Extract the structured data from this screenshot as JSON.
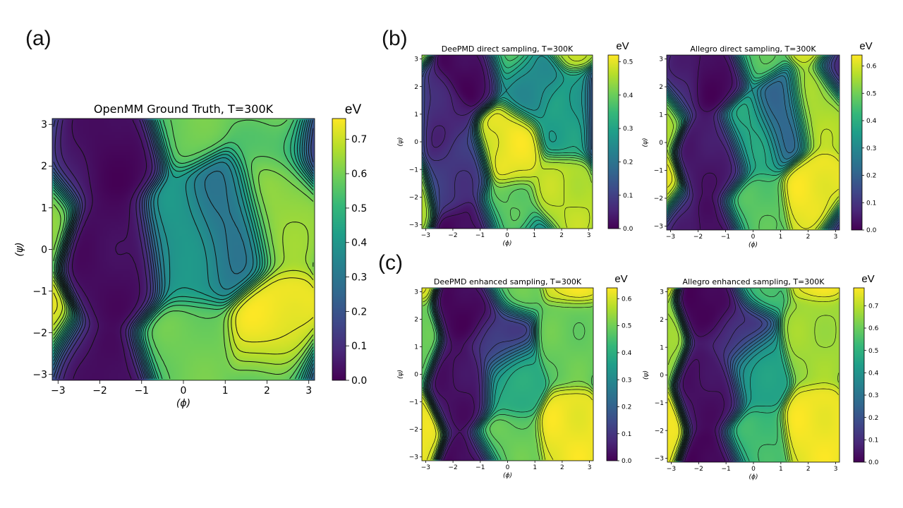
{
  "panel_labels": [
    "(a)",
    "(b)",
    "(c)"
  ],
  "colorscale": [
    "#440154",
    "#482878",
    "#3e4989",
    "#31688e",
    "#26828e",
    "#1f9e89",
    "#35b779",
    "#6ece58",
    "#b5de2b",
    "#fde725"
  ],
  "chart_data": [
    {
      "type": "heatmap",
      "title": "OpenMM Ground Truth, T=300K",
      "xlabel": "(ϕ)",
      "ylabel": "(ψ)",
      "xlim": [
        -3.14,
        3.14
      ],
      "ylim": [
        -3.14,
        3.14
      ],
      "xticks": [
        -3,
        -2,
        -1,
        0,
        1,
        2,
        3
      ],
      "yticks": [
        -3,
        -2,
        -1,
        0,
        1,
        2,
        3
      ],
      "colorbar": {
        "label": "eV",
        "min": 0.0,
        "max": 0.76,
        "ticks": [
          "0.0",
          "0.1",
          "0.2",
          "0.3",
          "0.4",
          "0.5",
          "0.6",
          "0.7"
        ]
      },
      "contour_levels": 20,
      "features": [
        {
          "phi": -1.6,
          "psi": 2.7,
          "value": 0.02
        },
        {
          "phi": -2.8,
          "psi": 2.8,
          "value": 0.05
        },
        {
          "phi": -1.5,
          "psi": -0.2,
          "value": 0.03
        },
        {
          "phi": 0.0,
          "psi": 0.2,
          "value": 0.42
        },
        {
          "phi": 1.0,
          "psi": 0.6,
          "value": 0.3
        },
        {
          "phi": 0.0,
          "psi": -2.7,
          "value": 0.6
        },
        {
          "phi": 2.35,
          "psi": -2.2,
          "value": 0.76
        },
        {
          "phi": 2.35,
          "psi": 1.1,
          "value": 0.65
        },
        {
          "phi": 2.35,
          "psi": 3.0,
          "value": 0.55
        }
      ]
    },
    {
      "type": "heatmap",
      "title": "DeePMD direct sampling, T=300K",
      "xlabel": "(ϕ)",
      "ylabel": "(ψ)",
      "xlim": [
        -3.14,
        3.14
      ],
      "ylim": [
        -3.14,
        3.14
      ],
      "xticks": [
        -3,
        -2,
        -1,
        0,
        1,
        2,
        3
      ],
      "yticks": [
        -3,
        -2,
        -1,
        0,
        1,
        2,
        3
      ],
      "colorbar": {
        "label": "eV",
        "min": 0.0,
        "max": 0.52,
        "ticks": [
          "0.0",
          "0.1",
          "0.2",
          "0.3",
          "0.4",
          "0.5"
        ]
      },
      "contour_levels": 20,
      "features": [
        {
          "phi": -1.2,
          "psi": 2.8,
          "value": 0.0
        },
        {
          "phi": -2.5,
          "psi": 0.8,
          "value": 0.05
        },
        {
          "phi": -1.8,
          "psi": -1.0,
          "value": 0.08
        },
        {
          "phi": 0.0,
          "psi": -0.1,
          "value": 0.52
        },
        {
          "phi": 2.2,
          "psi": -1.9,
          "value": 0.48
        },
        {
          "phi": 0.8,
          "psi": 2.2,
          "value": 0.25
        },
        {
          "phi": 0.0,
          "psi": -2.8,
          "value": 0.4
        },
        {
          "phi": 2.3,
          "psi": 0.8,
          "value": 0.3
        }
      ]
    },
    {
      "type": "heatmap",
      "title": "Allegro direct sampling, T=300K",
      "xlabel": "(ϕ)",
      "ylabel": "(ψ)",
      "xlim": [
        -3.14,
        3.14
      ],
      "ylim": [
        -3.14,
        3.14
      ],
      "xticks": [
        -3,
        -2,
        -1,
        0,
        1,
        2,
        3
      ],
      "yticks": [
        -3,
        -2,
        -1,
        0,
        1,
        2,
        3
      ],
      "colorbar": {
        "label": "eV",
        "min": 0.0,
        "max": 0.64,
        "ticks": [
          "0.0",
          "0.1",
          "0.2",
          "0.3",
          "0.4",
          "0.5",
          "0.6"
        ]
      },
      "contour_levels": 20,
      "features": [
        {
          "phi": -1.3,
          "psi": 2.8,
          "value": 0.0
        },
        {
          "phi": -2.8,
          "psi": 2.8,
          "value": 0.05
        },
        {
          "phi": -1.3,
          "psi": -0.6,
          "value": 0.03
        },
        {
          "phi": 0.0,
          "psi": 0.3,
          "value": 0.4
        },
        {
          "phi": 1.0,
          "psi": 0.9,
          "value": 0.2
        },
        {
          "phi": 0.0,
          "psi": -2.6,
          "value": 0.48
        },
        {
          "phi": 2.35,
          "psi": -2.0,
          "value": 0.64
        },
        {
          "phi": 2.35,
          "psi": 1.3,
          "value": 0.58
        }
      ]
    },
    {
      "type": "heatmap",
      "title": "DeePMD enhanced sampling, T=300K",
      "xlabel": "(ϕ)",
      "ylabel": "(ψ)",
      "xlim": [
        -3.14,
        3.14
      ],
      "ylim": [
        -3.14,
        3.14
      ],
      "xticks": [
        -3,
        -2,
        -1,
        0,
        1,
        2,
        3
      ],
      "yticks": [
        -3,
        -2,
        -1,
        0,
        1,
        2,
        3
      ],
      "colorbar": {
        "label": "eV",
        "min": 0.0,
        "max": 0.64,
        "ticks": [
          "0.0",
          "0.1",
          "0.2",
          "0.3",
          "0.4",
          "0.5",
          "0.6"
        ]
      },
      "contour_levels": 20,
      "features": [
        {
          "phi": -1.2,
          "psi": 2.5,
          "value": 0.0
        },
        {
          "phi": -1.5,
          "psi": -0.3,
          "value": 0.02
        },
        {
          "phi": -0.4,
          "psi": 1.2,
          "value": 0.1
        },
        {
          "phi": 0.0,
          "psi": -0.2,
          "value": 0.4
        },
        {
          "phi": 0.0,
          "psi": -2.7,
          "value": 0.5
        },
        {
          "phi": 2.4,
          "psi": -2.2,
          "value": 0.64
        },
        {
          "phi": 2.4,
          "psi": 1.2,
          "value": 0.5
        }
      ]
    },
    {
      "type": "heatmap",
      "title": "Allegro enhanced sampling, T=300K",
      "xlabel": "(ϕ)",
      "ylabel": "(ψ)",
      "xlim": [
        -3.14,
        3.14
      ],
      "ylim": [
        -3.14,
        3.14
      ],
      "xticks": [
        -3,
        -2,
        -1,
        0,
        1,
        2,
        3
      ],
      "yticks": [
        -3,
        -2,
        -1,
        0,
        1,
        2,
        3
      ],
      "colorbar": {
        "label": "eV",
        "min": 0.0,
        "max": 0.78,
        "ticks": [
          "0.0",
          "0.1",
          "0.2",
          "0.3",
          "0.4",
          "0.5",
          "0.6",
          "0.7"
        ]
      },
      "contour_levels": 20,
      "features": [
        {
          "phi": -1.3,
          "psi": 2.8,
          "value": 0.0
        },
        {
          "phi": -1.4,
          "psi": -0.5,
          "value": 0.03
        },
        {
          "phi": -0.6,
          "psi": 1.5,
          "value": 0.1
        },
        {
          "phi": 0.0,
          "psi": 0.2,
          "value": 0.45
        },
        {
          "phi": 0.0,
          "psi": -2.6,
          "value": 0.55
        },
        {
          "phi": 2.35,
          "psi": -2.0,
          "value": 0.78
        },
        {
          "phi": 2.35,
          "psi": 1.2,
          "value": 0.68
        }
      ]
    }
  ]
}
